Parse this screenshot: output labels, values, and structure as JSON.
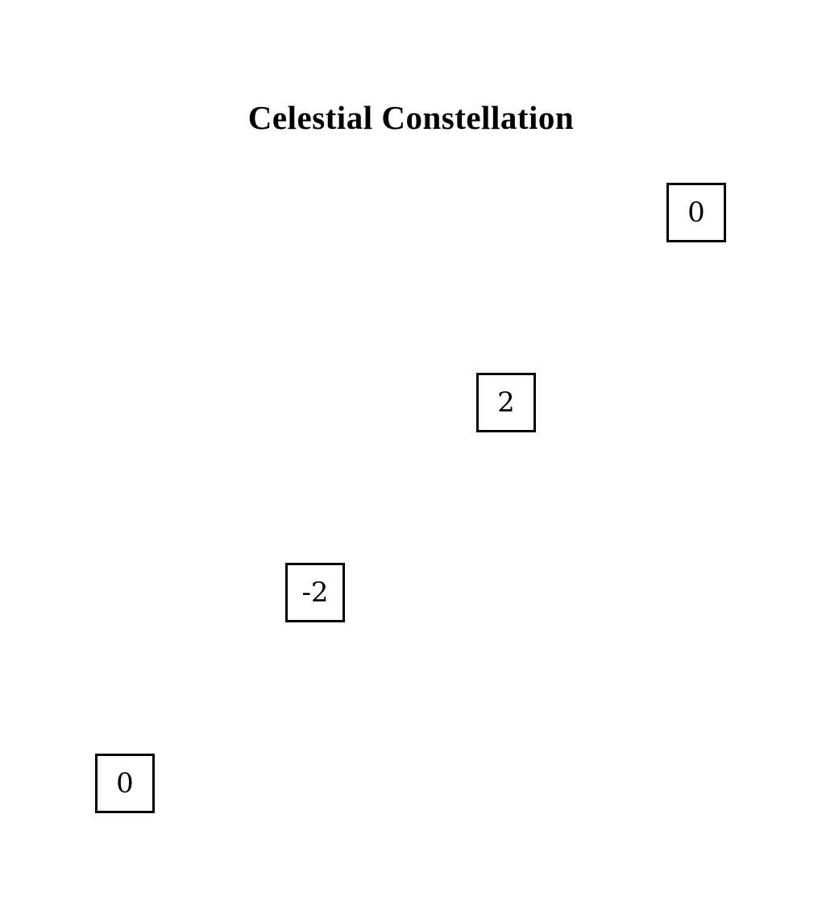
{
  "title": "Celestial Constellation",
  "nodes": [
    {
      "label": "0"
    },
    {
      "label": "2"
    },
    {
      "label": "-2"
    },
    {
      "label": "0"
    }
  ]
}
